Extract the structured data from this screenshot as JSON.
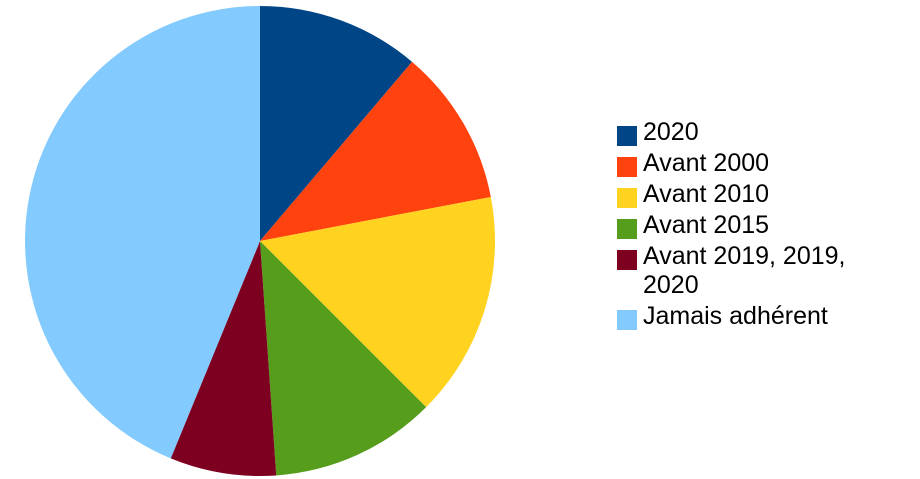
{
  "chart_data": {
    "type": "pie",
    "title": "",
    "slices": [
      {
        "label": "2020",
        "value": 11.2,
        "color": "#004586"
      },
      {
        "label": "Avant 2000",
        "value": 10.8,
        "color": "#ff420e"
      },
      {
        "label": "Avant 2010",
        "value": 15.5,
        "color": "#ffd320"
      },
      {
        "label": "Avant 2015",
        "value": 11.4,
        "color": "#579d1c"
      },
      {
        "label": "Avant 2019, 2019,\n2020",
        "value": 7.3,
        "color": "#7e0021"
      },
      {
        "label": "Jamais adhérent",
        "value": 43.8,
        "color": "#83caff"
      }
    ],
    "start_angle_deg": 0,
    "direction": "clockwise",
    "legend_position": "right"
  }
}
